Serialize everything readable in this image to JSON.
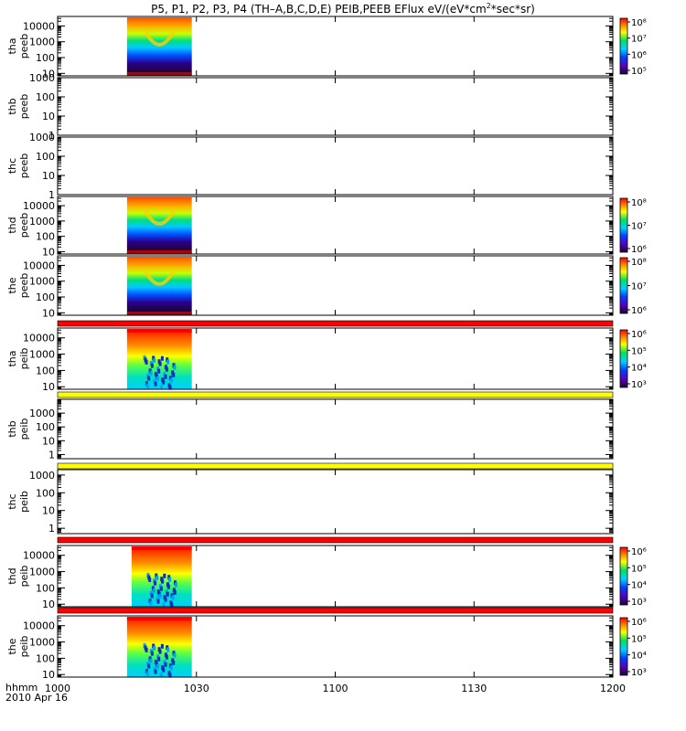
{
  "title": "P5, P1, P2, P3, P4 (TH–A,B,C,D,E) PEIB,PEEB EFlux eV/(eV*cm",
  "title_sup": "2",
  "title_tail": "*sec*sr)",
  "x_axis": {
    "corner_label": "hhmm",
    "date_label": "2010 Apr 16",
    "ticks": [
      "1000",
      "1030",
      "1100",
      "1130",
      "1200"
    ]
  },
  "chart_data": {
    "type": "heatmap",
    "title": "P5, P1, P2, P3, P4 (TH–A,B,C,D,E) PEIB,PEEB EFlux eV/(eV*cm2*sec*sr)",
    "x_range": [
      "10:00",
      "12:00"
    ],
    "x_ticks": [
      "1000",
      "1030",
      "1100",
      "1130",
      "1200"
    ],
    "y_scale": "log",
    "colorbar_scale": "log",
    "panels": [
      {
        "probe": "tha",
        "product": "peeb",
        "ylim": [
          7,
          40000
        ],
        "yticks": [
          "10",
          "100",
          "1000",
          "10000"
        ],
        "data_time": [
          "10:15",
          "10:29"
        ],
        "colorbar": {
          "ticks": [
            "10⁵",
            "10⁶",
            "10⁷",
            "10⁸"
          ]
        }
      },
      {
        "probe": "thb",
        "product": "peeb",
        "ylim": [
          1,
          1000
        ],
        "yticks": [
          "1",
          "10",
          "100",
          "1000"
        ],
        "data_time": null,
        "colorbar": null
      },
      {
        "probe": "thc",
        "product": "peeb",
        "ylim": [
          1,
          1000
        ],
        "yticks": [
          "1",
          "10",
          "100",
          "1000"
        ],
        "data_time": null,
        "colorbar": null
      },
      {
        "probe": "thd",
        "product": "peeb",
        "ylim": [
          7,
          40000
        ],
        "yticks": [
          "10",
          "100",
          "1000",
          "10000"
        ],
        "data_time": [
          "10:15",
          "10:29"
        ],
        "colorbar": {
          "ticks": [
            "10⁶",
            "10⁷",
            "10⁸"
          ]
        }
      },
      {
        "probe": "the",
        "product": "peeb",
        "ylim": [
          7,
          40000
        ],
        "yticks": [
          "10",
          "100",
          "1000",
          "10000"
        ],
        "data_time": [
          "10:15",
          "10:29"
        ],
        "colorbar": {
          "ticks": [
            "10⁶",
            "10⁷",
            "10⁸"
          ]
        }
      },
      {
        "probe": "tha",
        "product": "peib",
        "ylim": [
          7,
          40000
        ],
        "yticks": [
          "10",
          "100",
          "1000",
          "10000"
        ],
        "data_time": [
          "10:15",
          "10:29"
        ],
        "colorbar": {
          "ticks": [
            "10³",
            "10⁴",
            "10⁵",
            "10⁶"
          ]
        }
      },
      {
        "probe": "thb",
        "product": "peib",
        "ylim": [
          0.5,
          10000
        ],
        "yticks": [
          "1",
          "10",
          "100",
          "1000"
        ],
        "data_time": null,
        "colorbar": null
      },
      {
        "probe": "thc",
        "product": "peib",
        "ylim": [
          0.5,
          2000
        ],
        "yticks": [
          "1",
          "10",
          "100",
          "1000"
        ],
        "data_time": null,
        "colorbar": null
      },
      {
        "probe": "thd",
        "product": "peib",
        "ylim": [
          7,
          40000
        ],
        "yticks": [
          "10",
          "100",
          "1000",
          "10000"
        ],
        "data_time": [
          "10:16",
          "10:29"
        ],
        "colorbar": {
          "ticks": [
            "10³",
            "10⁴",
            "10⁵",
            "10⁶"
          ]
        }
      },
      {
        "probe": "the",
        "product": "peib",
        "ylim": [
          7,
          40000
        ],
        "yticks": [
          "10",
          "100",
          "1000",
          "10000"
        ],
        "data_time": [
          "10:15",
          "10:29"
        ],
        "colorbar": {
          "ticks": [
            "10³",
            "10⁴",
            "10⁵",
            "10⁶"
          ]
        }
      }
    ],
    "separator_bars": [
      {
        "after_panel": 5,
        "color": "#ff0000"
      },
      {
        "after_panel": 6,
        "color": "#ffff00"
      },
      {
        "after_panel": 7,
        "color": "#ffff00"
      },
      {
        "after_panel": 8,
        "color": "#ff0000"
      },
      {
        "after_panel": 9,
        "color": "#ff0000"
      }
    ],
    "colors": {
      "low": "#000080",
      "mid": "#00c8ff",
      "high": "#ff0000"
    }
  }
}
